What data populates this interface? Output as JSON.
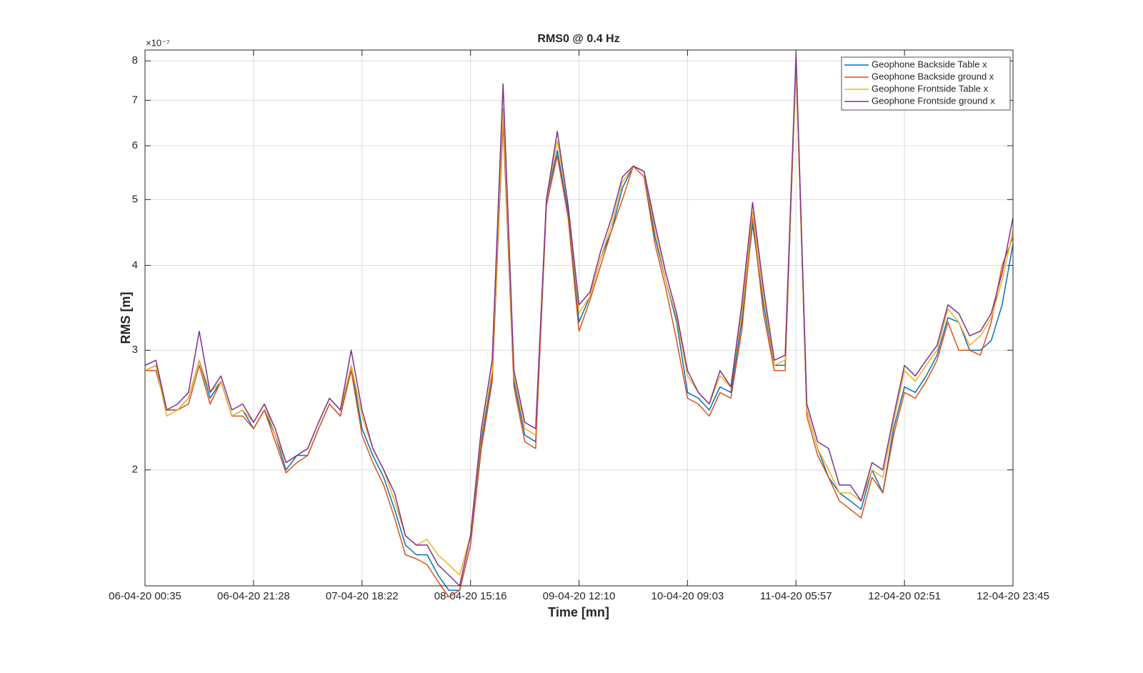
{
  "chart_data": {
    "type": "line",
    "title": "RMS0 @ 0.4 Hz",
    "x_label": "Time [mn]",
    "y_label": "RMS [m]",
    "y_exponent_label": "×10⁻⁷",
    "y_scale": "log",
    "grid": true,
    "legend": "northeast",
    "xlim": [
      0,
      80
    ],
    "xticks": [
      {
        "value": 0,
        "label": "06-04-20 00:35"
      },
      {
        "value": 10,
        "label": "06-04-20 21:28"
      },
      {
        "value": 20,
        "label": "07-04-20 18:22"
      },
      {
        "value": 30,
        "label": "08-04-20 15:16"
      },
      {
        "value": 40,
        "label": "09-04-20 12:10"
      },
      {
        "value": 50,
        "label": "10-04-20 09:03"
      },
      {
        "value": 60,
        "label": "11-04-20 05:57"
      },
      {
        "value": 70,
        "label": "12-04-20 02:51"
      },
      {
        "value": 80,
        "label": "12-04-20 23:45"
      }
    ],
    "ylim": [
      1.35,
      8.3
    ],
    "yticks": [
      2,
      3,
      4,
      5,
      6,
      7,
      8
    ],
    "series": [
      {
        "name": "Geophone Backside Table x",
        "color": "#0072BD",
        "values": [
          2.8,
          2.85,
          2.45,
          2.45,
          2.55,
          2.9,
          2.55,
          2.7,
          2.4,
          2.45,
          2.3,
          2.45,
          2.25,
          2.0,
          2.1,
          2.1,
          2.3,
          2.5,
          2.4,
          2.85,
          2.3,
          2.1,
          1.95,
          1.75,
          1.55,
          1.5,
          1.5,
          1.4,
          1.33,
          1.33,
          1.55,
          2.2,
          2.75,
          6.5,
          2.7,
          2.25,
          2.2,
          5.0,
          5.9,
          4.8,
          3.3,
          3.6,
          4.1,
          4.5,
          5.2,
          5.6,
          5.5,
          4.4,
          3.8,
          3.3,
          2.6,
          2.55,
          2.45,
          2.65,
          2.6,
          3.3,
          4.6,
          3.5,
          2.85,
          2.85,
          7.9,
          2.45,
          2.15,
          1.95,
          1.85,
          1.8,
          1.75,
          2.0,
          1.85,
          2.3,
          2.65,
          2.6,
          2.75,
          2.95,
          3.35,
          3.3,
          3.0,
          3.0,
          3.1,
          3.5,
          4.3
        ]
      },
      {
        "name": "Geophone Backside ground x",
        "color": "#D95319",
        "values": [
          2.8,
          2.8,
          2.45,
          2.45,
          2.5,
          2.85,
          2.5,
          2.7,
          2.4,
          2.4,
          2.3,
          2.45,
          2.2,
          1.98,
          2.05,
          2.1,
          2.3,
          2.5,
          2.4,
          2.8,
          2.25,
          2.05,
          1.9,
          1.7,
          1.5,
          1.48,
          1.45,
          1.37,
          1.3,
          1.33,
          1.55,
          2.15,
          2.7,
          6.6,
          2.65,
          2.2,
          2.15,
          4.9,
          5.8,
          4.7,
          3.2,
          3.55,
          4.0,
          4.5,
          5.0,
          5.6,
          5.4,
          4.3,
          3.7,
          3.1,
          2.55,
          2.5,
          2.4,
          2.6,
          2.55,
          3.2,
          4.7,
          3.4,
          2.8,
          2.8,
          8.0,
          2.4,
          2.1,
          1.95,
          1.8,
          1.75,
          1.7,
          1.95,
          1.85,
          2.25,
          2.6,
          2.55,
          2.7,
          2.9,
          3.3,
          3.0,
          3.0,
          2.95,
          3.3,
          4.0,
          4.4
        ]
      },
      {
        "name": "Geophone Frontside Table x",
        "color": "#EDB120",
        "values": [
          2.8,
          2.85,
          2.4,
          2.45,
          2.55,
          2.9,
          2.6,
          2.7,
          2.4,
          2.45,
          2.35,
          2.5,
          2.25,
          2.05,
          2.1,
          2.15,
          2.35,
          2.55,
          2.45,
          2.85,
          2.4,
          2.15,
          2.0,
          1.8,
          1.6,
          1.55,
          1.58,
          1.5,
          1.45,
          1.4,
          1.6,
          2.25,
          2.8,
          6.8,
          2.75,
          2.3,
          2.25,
          5.0,
          6.1,
          4.9,
          3.4,
          3.6,
          4.1,
          4.6,
          5.3,
          5.6,
          5.5,
          4.5,
          3.8,
          3.35,
          2.75,
          2.6,
          2.5,
          2.75,
          2.65,
          3.4,
          4.8,
          3.6,
          2.85,
          2.9,
          7.8,
          2.45,
          2.15,
          2.0,
          1.85,
          1.85,
          1.8,
          2.0,
          1.95,
          2.35,
          2.8,
          2.7,
          2.85,
          3.0,
          3.45,
          3.3,
          3.05,
          3.15,
          3.35,
          3.8,
          4.5
        ]
      },
      {
        "name": "Geophone Frontside ground x",
        "color": "#7E2F8E",
        "values": [
          2.85,
          2.9,
          2.45,
          2.5,
          2.6,
          3.2,
          2.6,
          2.75,
          2.45,
          2.5,
          2.35,
          2.5,
          2.3,
          2.05,
          2.1,
          2.15,
          2.35,
          2.55,
          2.45,
          3.0,
          2.45,
          2.15,
          2.0,
          1.85,
          1.6,
          1.55,
          1.55,
          1.45,
          1.4,
          1.35,
          1.6,
          2.3,
          2.9,
          7.4,
          2.8,
          2.35,
          2.3,
          5.0,
          6.3,
          4.9,
          3.5,
          3.65,
          4.2,
          4.7,
          5.4,
          5.6,
          5.5,
          4.6,
          3.9,
          3.4,
          2.8,
          2.6,
          2.5,
          2.8,
          2.65,
          3.5,
          4.95,
          3.7,
          2.9,
          2.95,
          8.2,
          2.5,
          2.2,
          2.15,
          1.9,
          1.9,
          1.8,
          2.05,
          2.0,
          2.4,
          2.85,
          2.75,
          2.9,
          3.05,
          3.5,
          3.4,
          3.15,
          3.2,
          3.4,
          3.9,
          4.7
        ]
      }
    ]
  }
}
